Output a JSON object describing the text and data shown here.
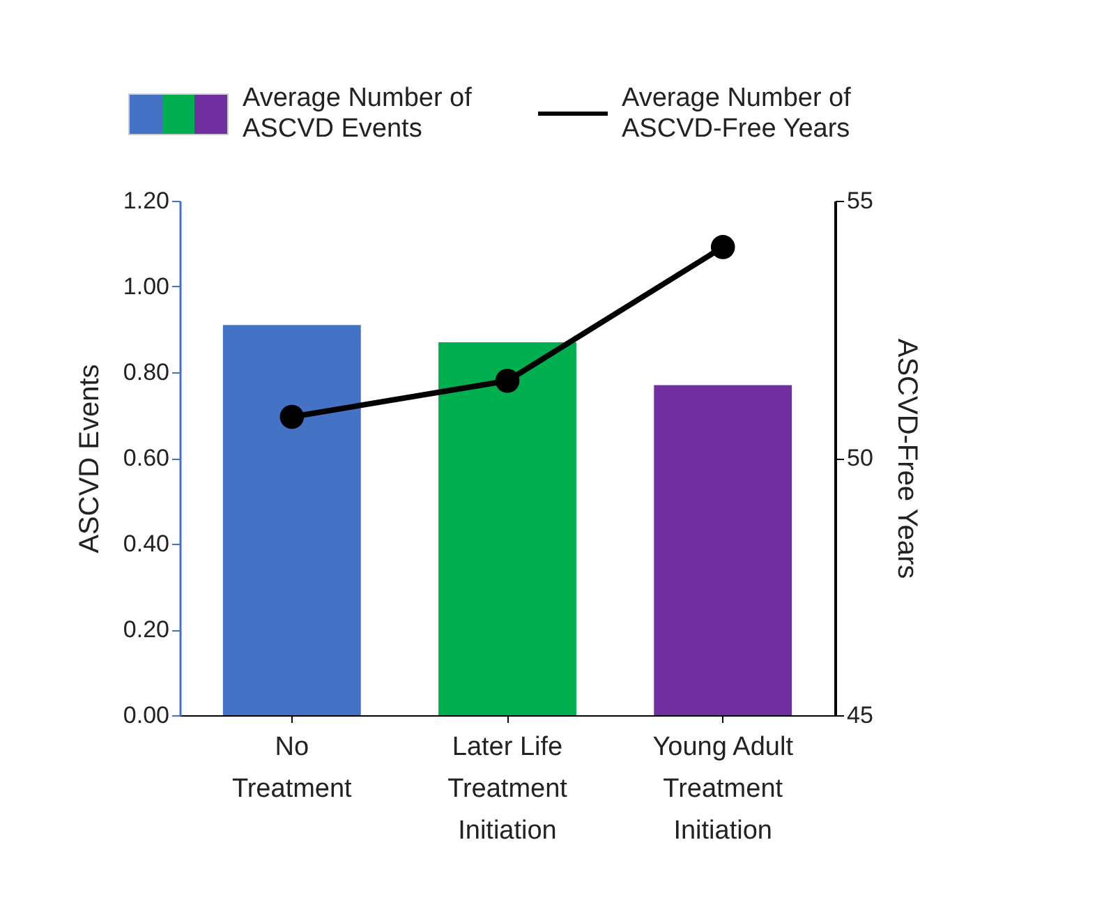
{
  "chart_data": {
    "type": "bar",
    "categories": [
      "No Treatment",
      "Later Life Treatment Initiation",
      "Young Adult Treatment Initiation"
    ],
    "ylabel": "ASCVD Events",
    "y2label": "ASCVD-Free Years",
    "series": [
      {
        "name": "Average Number of ASCVD Events",
        "colors": [
          "#4472c4",
          "#00b050",
          "#7030a0"
        ],
        "values": [
          0.91,
          0.87,
          0.77
        ]
      },
      {
        "name": "Average Number of ASCVD-Free Years",
        "type": "line",
        "axis": "y2",
        "color": "#000000",
        "marker": "circle",
        "values": [
          50.8,
          51.5,
          54.1
        ]
      }
    ],
    "ylim": [
      0,
      1.2
    ],
    "yticks": [
      {
        "value": 0,
        "label": "0.00"
      },
      {
        "value": 0.2,
        "label": "0.20"
      },
      {
        "value": 0.4,
        "label": "0.40"
      },
      {
        "value": 0.6,
        "label": "0.60"
      },
      {
        "value": 0.8,
        "label": "0.80"
      },
      {
        "value": 1,
        "label": "1.00"
      },
      {
        "value": 1.2,
        "label": "1.20"
      }
    ],
    "y2lim": [
      45,
      55
    ],
    "y2ticks": [
      45,
      50,
      55
    ],
    "grid": false,
    "legend": "top"
  }
}
